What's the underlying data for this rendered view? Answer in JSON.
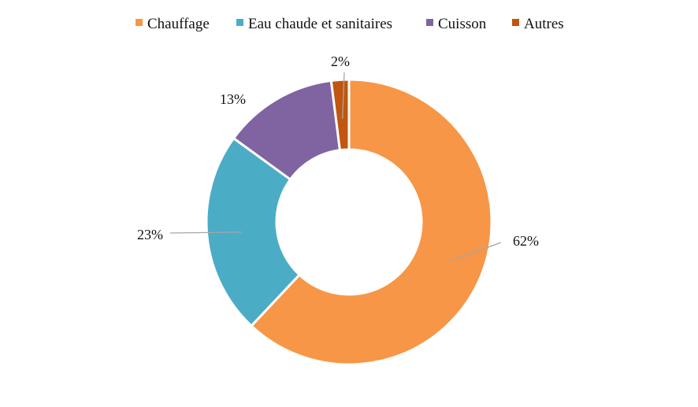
{
  "chart_data": {
    "type": "pie",
    "donut": true,
    "categories": [
      "Chauffage",
      "Eau chaude et sanitaires",
      "Cuisson",
      "Autres"
    ],
    "values": [
      62,
      23,
      13,
      2
    ],
    "data_labels": [
      "62%",
      "23%",
      "13%",
      "2%"
    ],
    "colors": [
      "#F79646",
      "#4BACC6",
      "#8064A2",
      "#C0560F"
    ],
    "legend_position": "top",
    "title": ""
  }
}
